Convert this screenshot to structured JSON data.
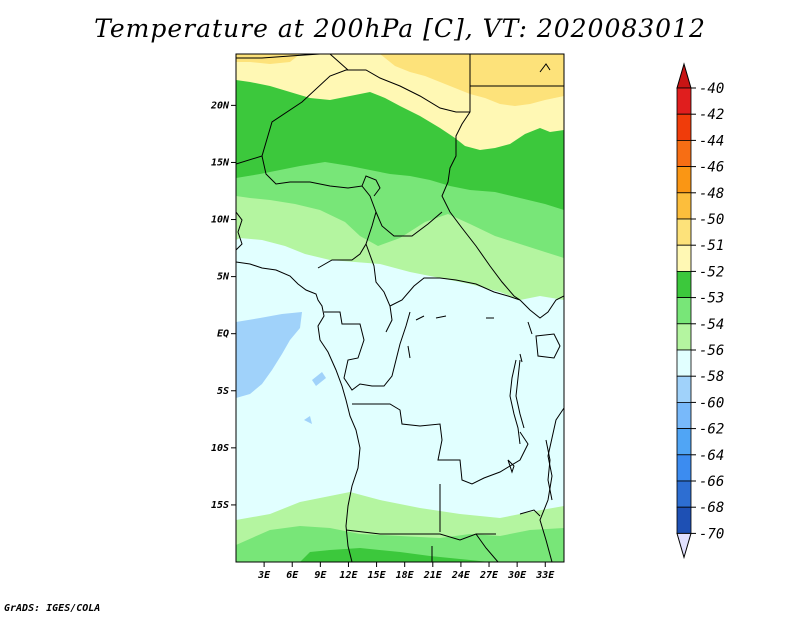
{
  "title": "Temperature at 200hPa [C], VT: 2020083012",
  "credit": "GrADS: IGES/COLA",
  "map": {
    "lon_range": [
      0,
      35
    ],
    "lat_range": [
      -20,
      24.5
    ],
    "lat_ticks": [
      {
        "value": 20,
        "label": "20N"
      },
      {
        "value": 15,
        "label": "15N"
      },
      {
        "value": 10,
        "label": "10N"
      },
      {
        "value": 5,
        "label": "5N"
      },
      {
        "value": 0,
        "label": "EQ"
      },
      {
        "value": -5,
        "label": "5S"
      },
      {
        "value": -10,
        "label": "10S"
      },
      {
        "value": -15,
        "label": "15S"
      }
    ],
    "lon_ticks": [
      {
        "value": 3,
        "label": "3E"
      },
      {
        "value": 6,
        "label": "6E"
      },
      {
        "value": 9,
        "label": "9E"
      },
      {
        "value": 12,
        "label": "12E"
      },
      {
        "value": 15,
        "label": "15E"
      },
      {
        "value": 18,
        "label": "18E"
      },
      {
        "value": 21,
        "label": "21E"
      },
      {
        "value": 24,
        "label": "24E"
      },
      {
        "value": 27,
        "label": "27E"
      },
      {
        "value": 30,
        "label": "30E"
      },
      {
        "value": 33,
        "label": "33E"
      }
    ]
  },
  "colorbar": {
    "entries": [
      {
        "label": "-40",
        "color": "#e01e1e"
      },
      {
        "label": "-42",
        "color": "#f03c0a"
      },
      {
        "label": "-44",
        "color": "#f76e14"
      },
      {
        "label": "-46",
        "color": "#fa9614"
      },
      {
        "label": "-48",
        "color": "#fcbe3c"
      },
      {
        "label": "-50",
        "color": "#fde27a"
      },
      {
        "label": "-51",
        "color": "#fff8b4"
      },
      {
        "label": "-52",
        "color": "#3cc83c"
      },
      {
        "label": "-53",
        "color": "#78e678"
      },
      {
        "label": "-54",
        "color": "#b4f5a0"
      },
      {
        "label": "-56",
        "color": "#e1ffff"
      },
      {
        "label": "-58",
        "color": "#a0d2fa"
      },
      {
        "label": "-60",
        "color": "#78b9fa"
      },
      {
        "label": "-62",
        "color": "#50a5f5"
      },
      {
        "label": "-64",
        "color": "#3c8cf0"
      },
      {
        "label": "-66",
        "color": "#2d6ed2"
      },
      {
        "label": "-68",
        "color": "#1e50b4"
      },
      {
        "label": "-70",
        "color": "#0a1e78"
      }
    ],
    "top_color": "#c81414",
    "bottom_color": "#e1e1ff"
  }
}
